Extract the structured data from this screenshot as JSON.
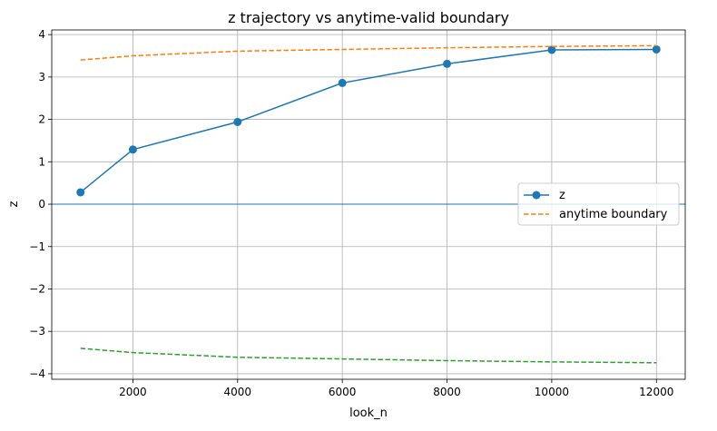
{
  "chart_data": {
    "type": "line",
    "title": "z trajectory vs anytime-valid boundary",
    "xlabel": "look_n",
    "ylabel": "z",
    "xlim": [
      450,
      12550
    ],
    "ylim": [
      -4.13,
      4.11
    ],
    "xticks": [
      2000,
      4000,
      6000,
      8000,
      10000,
      12000
    ],
    "yticks": [
      -4,
      -3,
      -2,
      -1,
      0,
      1,
      2,
      3,
      4
    ],
    "ytick_labels": [
      "−4",
      "−3",
      "−2",
      "−1",
      "0",
      "1",
      "2",
      "3",
      "4"
    ],
    "grid": true,
    "legend_placement": "center-right",
    "x": [
      1000,
      2000,
      4000,
      6000,
      8000,
      10000,
      12000
    ],
    "series": [
      {
        "name": "z",
        "values": [
          0.28,
          1.29,
          1.94,
          2.86,
          3.31,
          3.64,
          3.65
        ],
        "color": "#1f77b4",
        "style": "solid",
        "marker": "circle"
      },
      {
        "name": "anytime boundary",
        "values": [
          3.4,
          3.5,
          3.61,
          3.65,
          3.69,
          3.72,
          3.74
        ],
        "color": "#ff7f0e",
        "style": "dashed"
      },
      {
        "values": [
          -3.4,
          -3.5,
          -3.61,
          -3.65,
          -3.69,
          -3.72,
          -3.74
        ],
        "color": "#2ca02c",
        "style": "dashed"
      }
    ],
    "hline": {
      "y": 0,
      "color": "#1f77b4"
    }
  }
}
